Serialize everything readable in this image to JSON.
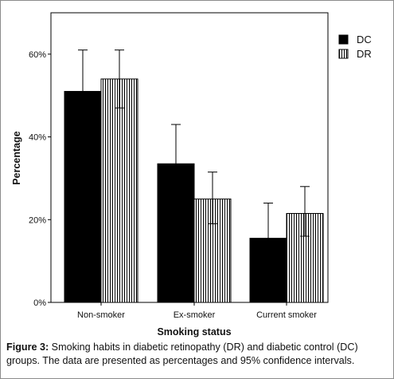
{
  "chart_data": {
    "type": "bar",
    "categories": [
      "Non-smoker",
      "Ex-smoker",
      "Current smoker"
    ],
    "series": [
      {
        "name": "DC",
        "values": [
          51,
          33.5,
          15.5
        ],
        "ci_low": [
          41,
          23.5,
          7.5
        ],
        "ci_high": [
          61,
          43,
          24
        ],
        "color": "#000000",
        "pattern": "solid"
      },
      {
        "name": "DR",
        "values": [
          54,
          25,
          21.5
        ],
        "ci_low": [
          47,
          19,
          16
        ],
        "ci_high": [
          61,
          31.5,
          28
        ],
        "color": "#000000",
        "pattern": "vertical-stripes"
      }
    ],
    "xlabel": "Smoking status",
    "ylabel": "Percentage",
    "ylim": [
      0,
      70
    ],
    "yticks": [
      0,
      20,
      40,
      60
    ],
    "ytick_labels": [
      "0%",
      "20%",
      "40%",
      "60%"
    ],
    "grid": false,
    "legend_position": "top-right"
  },
  "caption": {
    "label": "Figure 3:",
    "text": " Smoking habits in diabetic retinopathy (DR) and diabetic control (DC) groups. The data are presented as percentages and 95% confidence intervals."
  }
}
